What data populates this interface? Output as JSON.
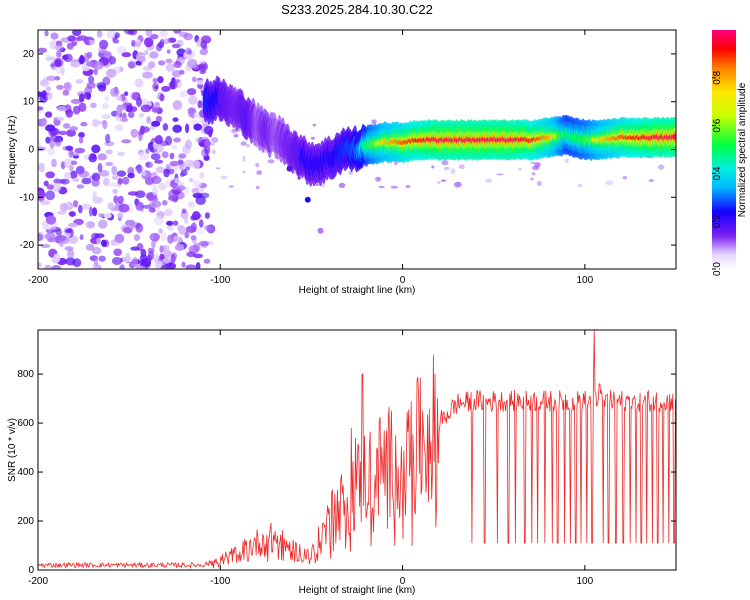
{
  "title": "S233.2025.284.10.30.C22",
  "colors": {
    "snr_line": "#ee2a2a",
    "axis": "#000000",
    "scatter": "#8a3ff0"
  },
  "chart_data": [
    {
      "type": "heatmap",
      "xlabel": "Height of straight line (km)",
      "ylabel": "Frequency (Hz)",
      "xlim": [
        -200,
        150
      ],
      "ylim": [
        -25,
        25
      ],
      "x_ticks": [
        -200,
        -100,
        0,
        100
      ],
      "x_tick_labels": [
        "-200",
        "-100",
        "0",
        "100"
      ],
      "y_ticks": [
        -20,
        -10,
        0,
        10,
        20
      ],
      "y_tick_labels": [
        "-20",
        "-10",
        "0",
        "10",
        "20"
      ],
      "colorbar": {
        "label": "Normalized spectral amplitude",
        "range": [
          0,
          1
        ],
        "ticks": [
          0,
          0.2,
          0.4,
          0.6,
          0.8
        ],
        "tick_labels": [
          "0.0",
          "0.2",
          "0.4",
          "0.6",
          "0.8"
        ]
      },
      "noise_region_x": [
        -200,
        -105
      ],
      "ridge": [
        {
          "x": -108,
          "f": 10,
          "a": 0.35
        },
        {
          "x": -100,
          "f": 10.5,
          "a": 0.3
        },
        {
          "x": -92,
          "f": 8.5,
          "a": 0.25
        },
        {
          "x": -85,
          "f": 7,
          "a": 0.3
        },
        {
          "x": -80,
          "f": 5,
          "a": 0.2
        },
        {
          "x": -75,
          "f": 3.5,
          "a": 0.25
        },
        {
          "x": -70,
          "f": 3,
          "a": 0.2
        },
        {
          "x": -63,
          "f": 1,
          "a": 0.25
        },
        {
          "x": -55,
          "f": -2,
          "a": 0.3
        },
        {
          "x": -48,
          "f": -3,
          "a": 0.3
        },
        {
          "x": -40,
          "f": -2,
          "a": 0.3
        },
        {
          "x": -33,
          "f": 0,
          "a": 0.35
        },
        {
          "x": -25,
          "f": 0,
          "a": 0.4
        },
        {
          "x": -18,
          "f": 1,
          "a": 0.6
        },
        {
          "x": -10,
          "f": 1.5,
          "a": 0.7
        },
        {
          "x": 0,
          "f": 1.5,
          "a": 0.8
        },
        {
          "x": 10,
          "f": 2,
          "a": 0.85
        },
        {
          "x": 20,
          "f": 2,
          "a": 0.9
        },
        {
          "x": 30,
          "f": 2,
          "a": 0.9
        },
        {
          "x": 40,
          "f": 2,
          "a": 0.9
        },
        {
          "x": 50,
          "f": 2,
          "a": 0.9
        },
        {
          "x": 60,
          "f": 2,
          "a": 0.9
        },
        {
          "x": 70,
          "f": 2,
          "a": 0.85
        },
        {
          "x": 80,
          "f": 2.5,
          "a": 0.75
        },
        {
          "x": 90,
          "f": 3,
          "a": 0.55
        },
        {
          "x": 100,
          "f": 2,
          "a": 0.6
        },
        {
          "x": 110,
          "f": 2,
          "a": 0.7
        },
        {
          "x": 120,
          "f": 2.5,
          "a": 0.8
        },
        {
          "x": 130,
          "f": 2.5,
          "a": 0.85
        },
        {
          "x": 140,
          "f": 2.5,
          "a": 0.9
        },
        {
          "x": 150,
          "f": 2.5,
          "a": 0.9
        }
      ]
    },
    {
      "type": "line",
      "xlabel": "Height of straight line (km)",
      "ylabel": "SNR (10 * v/v)",
      "xlim": [
        -200,
        150
      ],
      "ylim": [
        0,
        980
      ],
      "x_ticks": [
        -200,
        -100,
        0,
        100
      ],
      "x_tick_labels": [
        "-200",
        "-100",
        "0",
        "100"
      ],
      "y_ticks": [
        0,
        200,
        400,
        600,
        800
      ],
      "y_tick_labels": [
        "0",
        "200",
        "400",
        "600",
        "800"
      ],
      "series": [
        {
          "name": "SNR",
          "trend": {
            "x": [
              -200,
              -110,
              -100,
              -90,
              -80,
              -70,
              -60,
              -50,
              -40,
              -30,
              -20,
              -10,
              0,
              10,
              20,
              30,
              40,
              150
            ],
            "y": [
              20,
              20,
              40,
              70,
              110,
              130,
              80,
              60,
              200,
              300,
              390,
              430,
              450,
              520,
              600,
              680,
              690,
              690
            ]
          },
          "spikes": [
            {
              "x": -22,
              "y": 800
            },
            {
              "x": -26,
              "y": 540
            },
            {
              "x": -28,
              "y": 580
            },
            {
              "x": 105,
              "y": 980
            },
            {
              "x": 108,
              "y": 760
            }
          ],
          "dips": [
            38,
            45,
            52,
            58,
            62,
            67,
            71,
            74,
            78,
            82,
            85,
            89,
            92,
            95,
            98,
            101,
            104,
            110,
            113,
            117,
            121,
            125,
            128,
            131,
            134,
            137,
            140,
            143,
            146,
            149
          ],
          "dip_value": 110
        }
      ]
    }
  ]
}
